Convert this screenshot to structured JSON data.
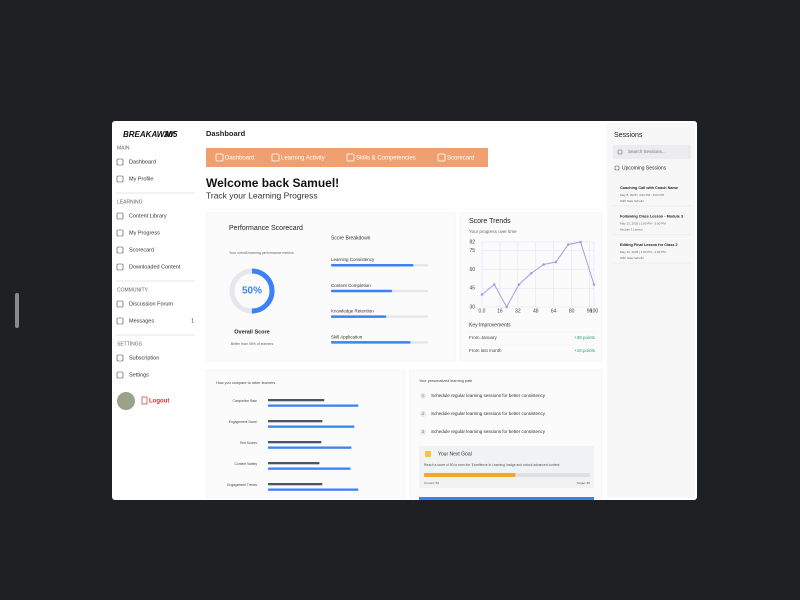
{
  "sidebar": {
    "logo": "BREAKAWAY",
    "logo_mark": "365",
    "sections": [
      {
        "title": "MAIN",
        "items": [
          "Dashboard",
          "My Profile"
        ]
      },
      {
        "title": "LEARNING",
        "items": [
          "Content Library",
          "My Progress",
          "Scorecard",
          "Downloaded Content"
        ]
      },
      {
        "title": "COMMUNITY",
        "items": [
          "Discussion Forum",
          "Messages"
        ]
      },
      {
        "title": "SETTINGS",
        "items": [
          "Subscription",
          "Settings"
        ]
      }
    ],
    "messages_badge": "1",
    "logout": "Logout"
  },
  "header": {
    "title": "Dashboard",
    "tabs": [
      "Dashboard",
      "Learning Activity",
      "Skills & Competencies",
      "Scorecard"
    ]
  },
  "welcome": {
    "title": "Welcome back Samuel!",
    "subtitle": "Track your Learning Progress"
  },
  "scorecard": {
    "title": "Performance Scorecard",
    "caption": "Your overall learning performance metrics",
    "score": 50,
    "score_label": "50%",
    "score_caption": "Overall Score",
    "note": "Better than 45% of learners",
    "breakdown_title": "Score Breakdown",
    "breakdown": [
      {
        "name": "Learning Consistency",
        "value": 85
      },
      {
        "name": "Content Completion",
        "value": 63
      },
      {
        "name": "Knowledge Retention",
        "value": 57
      },
      {
        "name": "Skill Application",
        "value": 82
      }
    ]
  },
  "chart_data": [
    {
      "type": "line",
      "title": "Score Trends",
      "subtitle": "Your progress over time",
      "x": [
        0,
        11,
        22,
        33,
        44,
        55,
        66,
        77,
        88,
        100
      ],
      "series": [
        {
          "color": "#a99be6",
          "values": [
            40,
            48,
            30,
            48,
            57,
            64,
            66,
            80,
            82,
            48
          ]
        }
      ],
      "xlim": [
        0,
        100
      ],
      "ylim": [
        30,
        82
      ],
      "xticks": [
        {
          "value": 0,
          "label": "0.0"
        },
        16,
        32,
        48,
        64,
        80,
        96,
        100
      ],
      "yticks": [
        30,
        45,
        60,
        75,
        82
      ],
      "grid": true
    },
    {
      "type": "bar",
      "title": "How you compare to other learners",
      "categories": [
        "Completion Rate",
        "Engagement Score",
        "Test Scores",
        "Content Variety",
        "Engagement Trends"
      ],
      "series": [
        {
          "color": "#4b5563",
          "values": [
            58,
            56,
            55,
            53,
            56
          ]
        },
        {
          "color": "#3b82f6",
          "values": [
            93,
            89,
            86,
            85,
            93
          ]
        }
      ],
      "xlim": [
        0,
        100
      ]
    }
  ],
  "improvements": {
    "title": "Key Improvements",
    "rows": [
      [
        "From January",
        "+38 points"
      ],
      [
        "From last month",
        "+18 points"
      ]
    ]
  },
  "learning_path": {
    "title": "Your personalized learning path",
    "steps": [
      {
        "number": "1",
        "text": "Schedule regular learning sessions for better consistency"
      },
      {
        "number": "2",
        "text": "Schedule regular learning sessions for better consistency"
      },
      {
        "number": "3",
        "text": "Schedule regular learning sessions for better consistency"
      }
    ],
    "goal": {
      "title": "Your Next Goal",
      "text": "Reach a score of 80 to earn the 'Excellence in Learning' badge and unlock advanced content",
      "progress": 55,
      "current": "Current: 50",
      "target": "Target: 80"
    }
  },
  "sessions": {
    "title": "Sessions",
    "search": "Search Sessions...",
    "upcoming": "Upcoming Sessions",
    "items": [
      {
        "title": "Coaching Call with Coach Name",
        "date": "May 8, 2025 | 4:00 PM - 5:00 PM",
        "note": "With Nate Schultz"
      },
      {
        "title": "Following Class Lesson - Module 3",
        "date": "May 12, 2025 | 2:00 PM - 3:00 PM",
        "note": "Module 3 Lesson"
      },
      {
        "title": "Editing Final Lesson for Class 2",
        "date": "May 20, 2025 | 1:00 PM - 2:00 PM",
        "note": "With Nate Schultz"
      }
    ]
  }
}
